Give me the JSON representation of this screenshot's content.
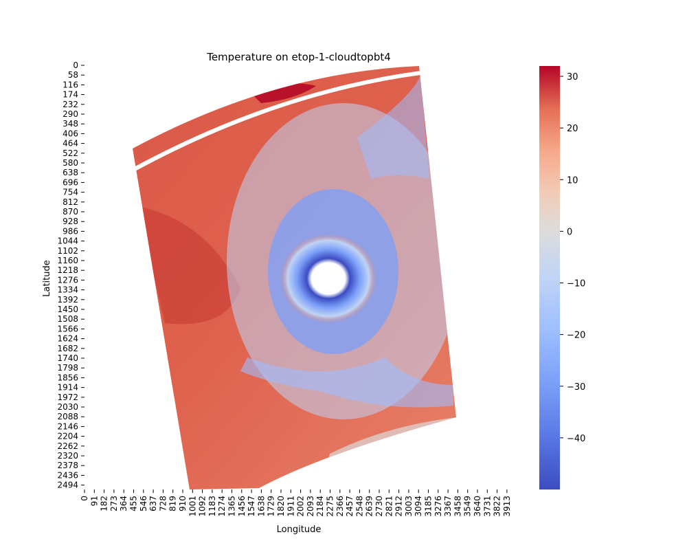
{
  "chart_data": {
    "type": "heatmap",
    "title": "Temperature on etop-1-cloudtopbt4",
    "xlabel": "Longitude",
    "ylabel": "Latitude",
    "x_ticks": [
      "0",
      "91",
      "182",
      "273",
      "364",
      "455",
      "546",
      "637",
      "728",
      "819",
      "910",
      "1001",
      "1092",
      "1183",
      "1274",
      "1365",
      "1456",
      "1547",
      "1638",
      "1729",
      "1820",
      "1911",
      "2002",
      "2093",
      "2184",
      "2275",
      "2366",
      "2457",
      "2548",
      "2639",
      "2730",
      "2821",
      "2912",
      "3003",
      "3094",
      "3185",
      "3276",
      "3367",
      "3458",
      "3549",
      "3640",
      "3731",
      "3822",
      "3913"
    ],
    "y_ticks": [
      "0",
      "58",
      "116",
      "174",
      "232",
      "290",
      "348",
      "406",
      "464",
      "522",
      "580",
      "638",
      "696",
      "754",
      "812",
      "870",
      "928",
      "986",
      "1044",
      "1102",
      "1160",
      "1218",
      "1276",
      "1334",
      "1392",
      "1450",
      "1508",
      "1566",
      "1624",
      "1682",
      "1740",
      "1798",
      "1856",
      "1914",
      "1972",
      "2030",
      "2088",
      "2146",
      "2204",
      "2262",
      "2320",
      "2378",
      "2436",
      "2494"
    ],
    "colorbar": {
      "colormap": "coolwarm",
      "min": -50,
      "max": 32,
      "ticks": [
        "30",
        "20",
        "10",
        "0",
        "−10",
        "−20",
        "−30",
        "−40"
      ]
    },
    "description_values": {
      "background_field_c": 22,
      "storm_core_c": -50,
      "cloud_band_c": -25
    },
    "colors": {
      "cold": "#3b4cc0",
      "neutral": "#dddcdc",
      "warm": "#b40426"
    }
  }
}
